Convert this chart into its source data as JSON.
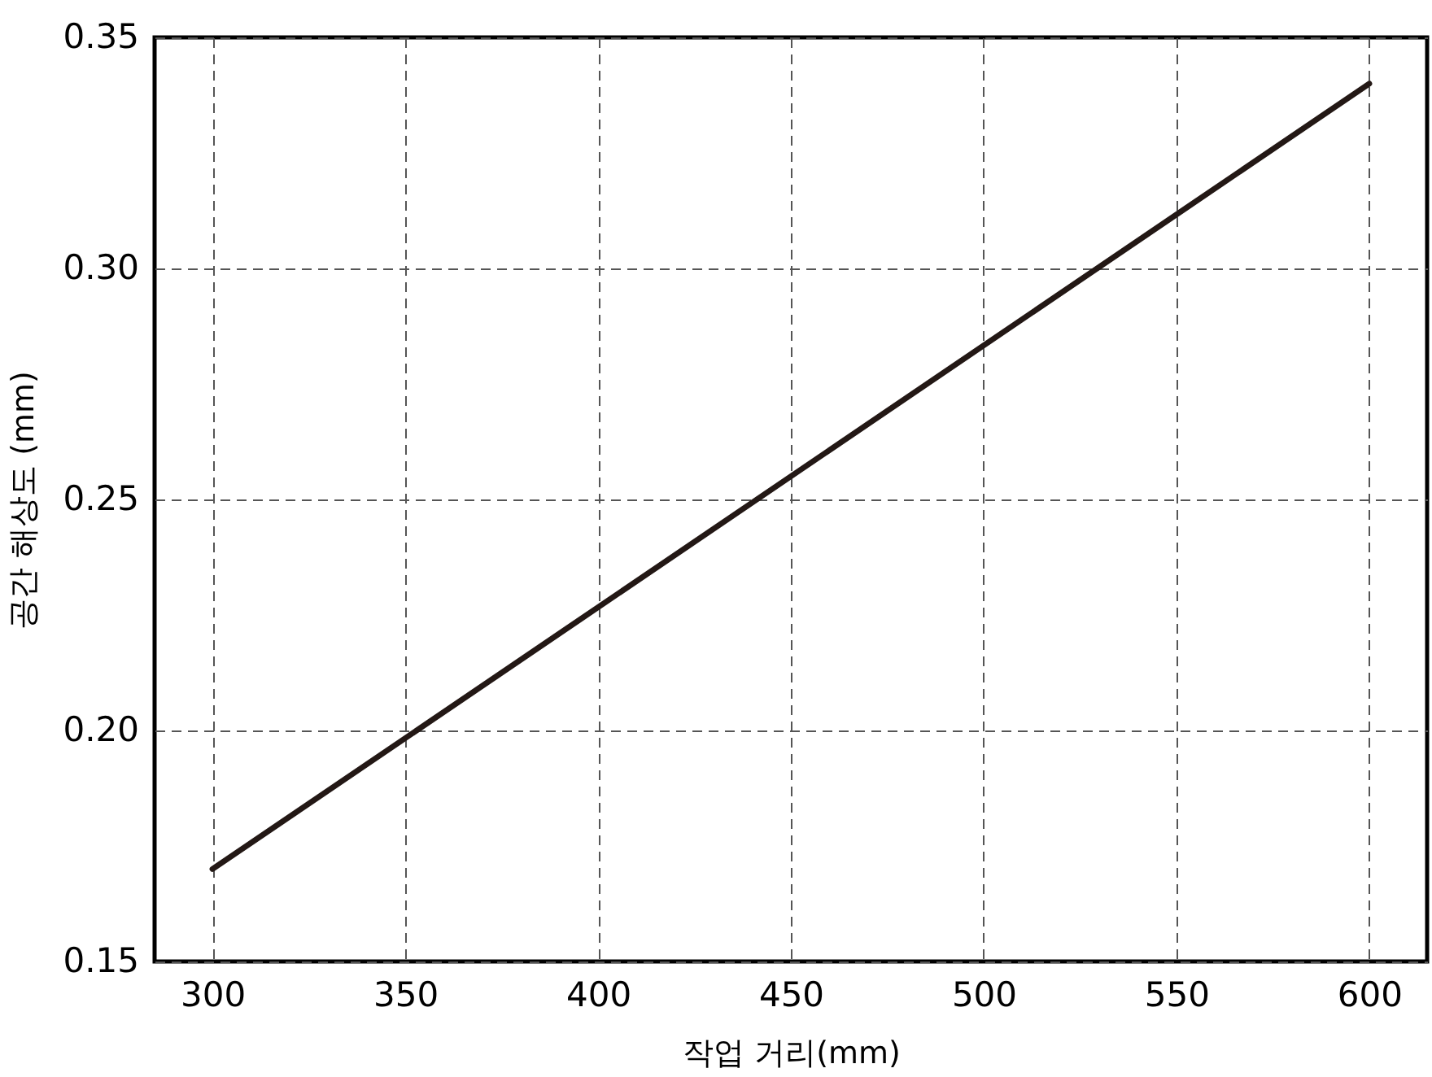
{
  "chart_data": {
    "type": "line",
    "xlabel": "작업 거리(mm)",
    "ylabel": "공간 해상도 (mm)",
    "x": [
      300,
      600
    ],
    "series": [
      {
        "color": "#231815",
        "values": [
          0.17,
          0.34
        ]
      }
    ],
    "xlim": [
      285,
      615
    ],
    "xticks": [
      300,
      350,
      400,
      450,
      500,
      550,
      600
    ],
    "ylim": [
      0.15,
      0.35
    ],
    "yticks": [
      0.15,
      {
        "value": 0.2,
        "label": "0.20"
      },
      0.25,
      {
        "value": 0.3,
        "label": "0.30"
      },
      0.35
    ],
    "grid": true,
    "marker": "none",
    "line_style": "solid"
  }
}
